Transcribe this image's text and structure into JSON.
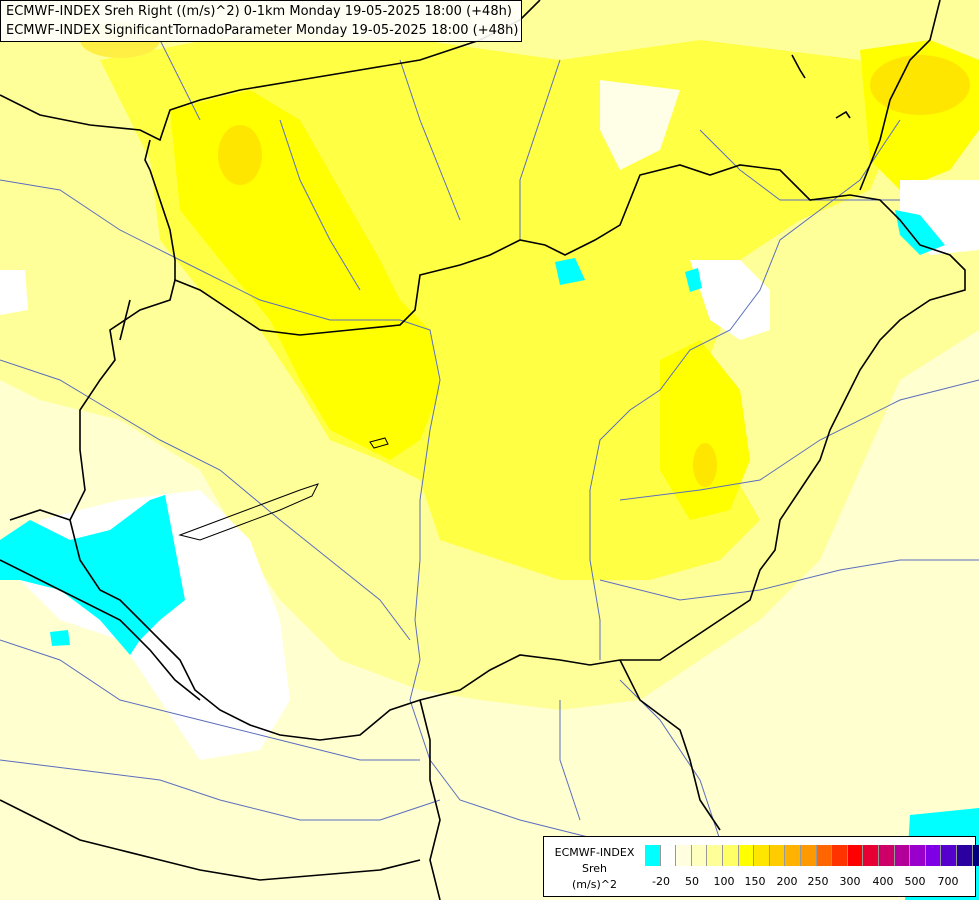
{
  "header": {
    "line1": "ECMWF-INDEX Sreh Right ((m/s)^2) 0-1km Monday 19-05-2025 18:00 (+48h)",
    "line2": "ECMWF-INDEX SignificantTornadoParameter Monday 19-05-2025 18:00 (+48h)"
  },
  "legend": {
    "title_line1": "ECMWF-INDEX",
    "title_line2": "Sreh",
    "title_line3": "(m/s)^2",
    "swatch_colors": [
      "#00ffff",
      "#ffffff",
      "#ffffe0",
      "#ffffc0",
      "#ffff99",
      "#ffff66",
      "#ffff00",
      "#ffe600",
      "#ffcc00",
      "#ffb300",
      "#ff9900",
      "#ff6600",
      "#ff3300",
      "#ff0000",
      "#e60033",
      "#cc0066",
      "#b30099",
      "#9900cc",
      "#7f00e6",
      "#5500cc",
      "#2a00a0",
      "#000080"
    ],
    "tick_labels": [
      "-20",
      "50",
      "100",
      "150",
      "200",
      "250",
      "300",
      "400",
      "500",
      "700"
    ]
  },
  "colors": {
    "negative": "#00ffff",
    "pale": "#ffffd9",
    "light_yellow": "#ffff99",
    "yellow": "#ffff33",
    "gold": "#ffe000",
    "border": "#000000",
    "river": "#5b6ebd"
  }
}
